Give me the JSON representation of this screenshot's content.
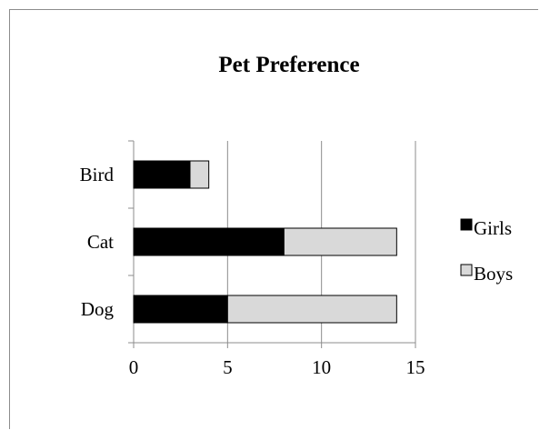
{
  "chart_data": {
    "type": "bar",
    "orientation": "horizontal",
    "stacked": true,
    "title": "Pet Preference",
    "categories": [
      "Bird",
      "Cat",
      "Dog"
    ],
    "series": [
      {
        "name": "Girls",
        "values": [
          3,
          8,
          5
        ],
        "color": "#000000"
      },
      {
        "name": "Boys",
        "values": [
          1,
          6,
          9
        ],
        "color": "#d9d9d9"
      }
    ],
    "xlim": [
      0,
      15
    ],
    "xticks": [
      0,
      5,
      10,
      15
    ],
    "grid": "vertical",
    "legend": "right"
  }
}
